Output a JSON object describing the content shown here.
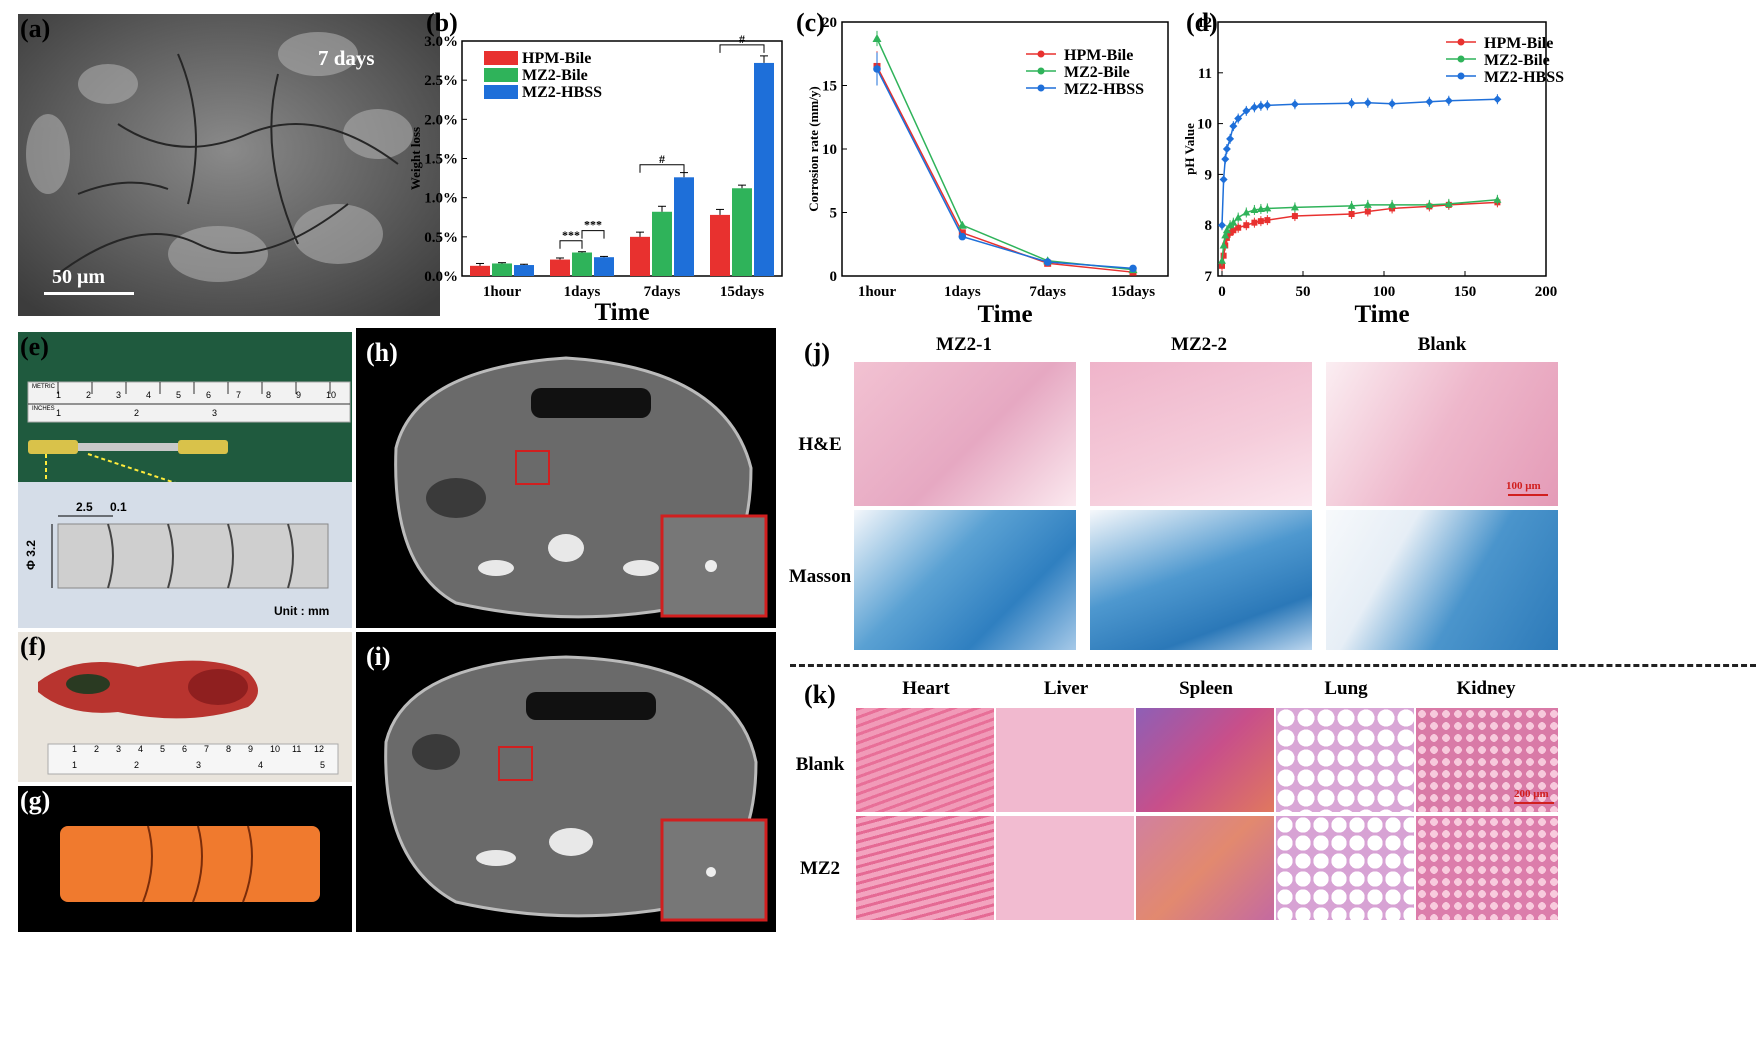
{
  "labels": {
    "a": "(a)",
    "b": "(b)",
    "c": "(c)",
    "d": "(d)",
    "e": "(e)",
    "f": "(f)",
    "g": "(g)",
    "h": "(h)",
    "i": "(i)",
    "j": "(j)",
    "k": "(k)"
  },
  "panel_a": {
    "time_text": "7 days",
    "scalebar_text": "50 μm"
  },
  "panel_e": {
    "dim_1": "2.5",
    "dim_2": "0.1",
    "diameter": "Φ 3.2",
    "unit": "Unit : mm",
    "ruler_top_cm": [
      "1",
      "2",
      "3",
      "4",
      "5",
      "6",
      "7",
      "8",
      "9",
      "10"
    ],
    "ruler_bottom_in": [
      "1",
      "2",
      "3"
    ],
    "ruler_text_1": "METRIC",
    "ruler_text_2": "INCHES"
  },
  "panel_f": {
    "ruler_cm": [
      "1",
      "2",
      "3",
      "4",
      "5",
      "6",
      "7",
      "8",
      "9",
      "10",
      "11",
      "12"
    ],
    "ruler_in": [
      "1",
      "2",
      "3",
      "4",
      "5"
    ]
  },
  "panel_j": {
    "columns": [
      "MZ2-1",
      "MZ2-2",
      "Blank"
    ],
    "rows": [
      "H&E",
      "Masson"
    ],
    "scalebar": "100 μm"
  },
  "panel_k": {
    "columns": [
      "Heart",
      "Liver",
      "Spleen",
      "Lung",
      "Kidney"
    ],
    "rows": [
      "Blank",
      "MZ2"
    ],
    "scalebar": "200 μm"
  },
  "colors": {
    "hpm": "#e8312f",
    "mz2bile": "#2fb35a",
    "mz2hbss": "#1e6fd9",
    "inset_box": "#d11f1f"
  },
  "chart_data": [
    {
      "id": "b",
      "type": "bar",
      "title": "",
      "xlabel": "Time",
      "ylabel": "Weight loss",
      "categories": [
        "1hour",
        "1days",
        "7days",
        "15days"
      ],
      "ylim": [
        0,
        3.0
      ],
      "yticks": [
        "0.0%",
        "0.5%",
        "1.0%",
        "1.5%",
        "2.0%",
        "2.5%",
        "3.0%"
      ],
      "series": [
        {
          "name": "HPM-Bile",
          "values": [
            0.13,
            0.21,
            0.5,
            0.78
          ],
          "errors": [
            0.03,
            0.02,
            0.06,
            0.07
          ]
        },
        {
          "name": "MZ2-Bile",
          "values": [
            0.16,
            0.3,
            0.82,
            1.12
          ],
          "errors": [
            0.01,
            0.01,
            0.07,
            0.04
          ]
        },
        {
          "name": "MZ2-HBSS",
          "values": [
            0.14,
            0.24,
            1.26,
            2.72
          ],
          "errors": [
            0.01,
            0.01,
            0.06,
            0.09
          ]
        }
      ],
      "significance": [
        {
          "category": "1days",
          "pair": "HPM-Bile vs MZ2-Bile",
          "mark": "***"
        },
        {
          "category": "1days",
          "pair": "MZ2-Bile vs MZ2-HBSS",
          "mark": "***"
        },
        {
          "category": "7days",
          "pair": "HPM-Bile vs MZ2-HBSS",
          "mark": "#"
        },
        {
          "category": "15days",
          "pair": "HPM-Bile vs MZ2-HBSS",
          "mark": "#"
        }
      ],
      "legend": "top-left"
    },
    {
      "id": "c",
      "type": "line",
      "xlabel": "Time",
      "ylabel": "Corrosion rate (mm/y)",
      "categories": [
        "1hour",
        "1days",
        "7days",
        "15days"
      ],
      "ylim": [
        0,
        20
      ],
      "yticks": [
        "0",
        "5",
        "10",
        "15",
        "20"
      ],
      "series": [
        {
          "name": "HPM-Bile",
          "values": [
            16.5,
            3.4,
            1.0,
            0.3
          ],
          "errors": [
            1.2,
            0.2,
            0.1,
            0.05
          ]
        },
        {
          "name": "MZ2-Bile",
          "values": [
            18.7,
            4.0,
            1.2,
            0.5
          ],
          "errors": [
            0.6,
            0.2,
            0.1,
            0.05
          ]
        },
        {
          "name": "MZ2-HBSS",
          "values": [
            16.3,
            3.1,
            1.1,
            0.6
          ],
          "errors": [
            1.3,
            0.2,
            0.1,
            0.05
          ]
        }
      ],
      "legend": "top-right"
    },
    {
      "id": "d",
      "type": "line",
      "xlabel": "Time",
      "ylabel": "pH Value",
      "xlim": [
        0,
        200
      ],
      "ylim": [
        7,
        12
      ],
      "xticks": [
        "0",
        "50",
        "100",
        "150",
        "200"
      ],
      "yticks": [
        "7",
        "8",
        "9",
        "10",
        "11",
        "12"
      ],
      "series": [
        {
          "name": "HPM-Bile",
          "x": [
            0,
            1,
            2,
            3,
            5,
            7,
            10,
            15,
            20,
            24,
            28,
            45,
            80,
            90,
            105,
            128,
            140,
            170
          ],
          "y": [
            7.2,
            7.4,
            7.6,
            7.75,
            7.85,
            7.9,
            7.95,
            8.0,
            8.05,
            8.08,
            8.1,
            8.18,
            8.22,
            8.27,
            8.33,
            8.37,
            8.4,
            8.45
          ]
        },
        {
          "name": "MZ2-Bile",
          "x": [
            0,
            1,
            2,
            3,
            5,
            7,
            10,
            15,
            20,
            24,
            28,
            45,
            80,
            90,
            105,
            128,
            140,
            170
          ],
          "y": [
            7.3,
            7.6,
            7.8,
            7.9,
            8.0,
            8.05,
            8.15,
            8.25,
            8.3,
            8.32,
            8.33,
            8.35,
            8.38,
            8.4,
            8.4,
            8.4,
            8.42,
            8.5
          ]
        },
        {
          "name": "MZ2-HBSS",
          "x": [
            0,
            1,
            2,
            3,
            5,
            7,
            10,
            15,
            20,
            24,
            28,
            45,
            80,
            90,
            105,
            128,
            140,
            170
          ],
          "y": [
            8.0,
            8.9,
            9.3,
            9.5,
            9.7,
            9.95,
            10.1,
            10.25,
            10.32,
            10.35,
            10.36,
            10.38,
            10.4,
            10.41,
            10.39,
            10.43,
            10.45,
            10.48
          ]
        }
      ],
      "legend": "top-right"
    }
  ]
}
